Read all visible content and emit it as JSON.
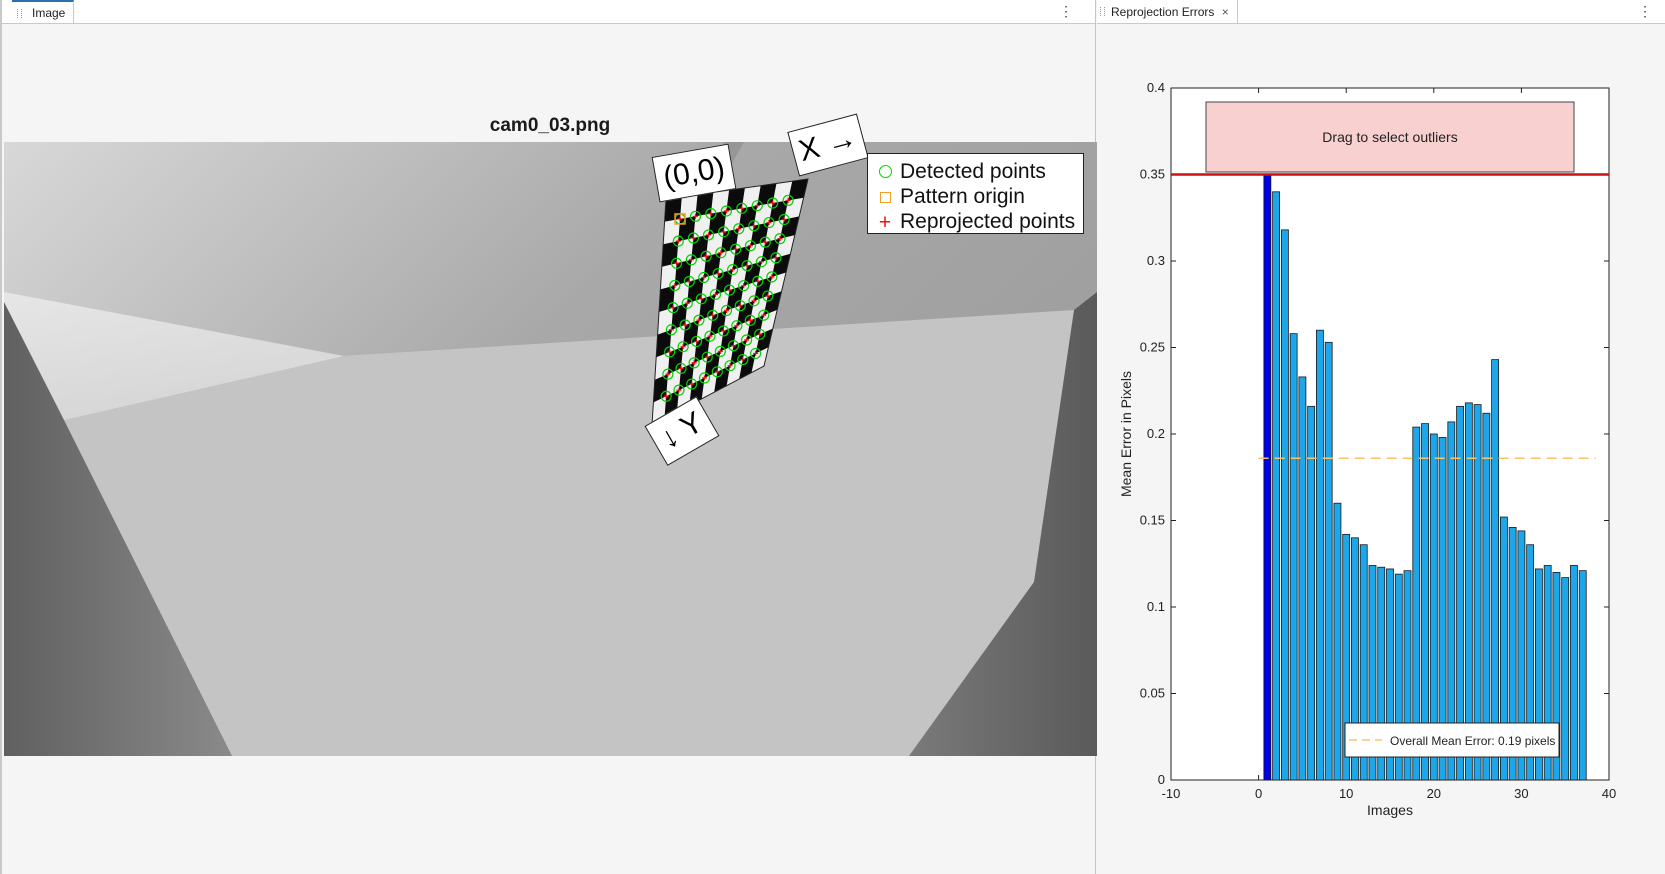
{
  "left_panel": {
    "tab_label": "Image",
    "image_title": "cam0_03.png",
    "origin_label": "(0,0)",
    "x_axis_label": "X →",
    "y_axis_label": "↓ Y",
    "legend": {
      "detected": "Detected points",
      "origin": "Pattern origin",
      "reprojected": "Reprojected points"
    }
  },
  "right_panel": {
    "tab_label": "Reprojection Errors",
    "close_icon": "×",
    "outlier_box_label": "Drag to select outliers"
  },
  "menu_icon": "⋮",
  "colors": {
    "bar": "#1da7ea",
    "bar_selected": "#0000e6",
    "threshold_line": "#cc1111",
    "mean_line": "#f6c46b",
    "outlier_box": "#f8d0d0",
    "detected_marker": "#00d400",
    "origin_marker": "#f0a020",
    "reprojected_marker": "#ee1111"
  },
  "chart_data": {
    "type": "bar",
    "xlabel": "Images",
    "ylabel": "Mean Error in Pixels",
    "xlim": [
      -10,
      40
    ],
    "ylim": [
      0,
      0.4
    ],
    "xticks": [
      "-10",
      "0",
      "10",
      "20",
      "30",
      "40"
    ],
    "yticks": [
      "0",
      "0.05",
      "0.1",
      "0.15",
      "0.2",
      "0.25",
      "0.3",
      "0.35",
      "0.4"
    ],
    "x": [
      1,
      2,
      3,
      4,
      5,
      6,
      7,
      8,
      9,
      10,
      11,
      12,
      13,
      14,
      15,
      16,
      17,
      18,
      19,
      20,
      21,
      22,
      23,
      24,
      25,
      26,
      27,
      28,
      29,
      30,
      31,
      32,
      33,
      34,
      35,
      36,
      37
    ],
    "values": [
      0.35,
      0.34,
      0.318,
      0.258,
      0.233,
      0.216,
      0.26,
      0.253,
      0.16,
      0.142,
      0.14,
      0.136,
      0.124,
      0.123,
      0.122,
      0.119,
      0.121,
      0.204,
      0.206,
      0.2,
      0.198,
      0.207,
      0.216,
      0.218,
      0.217,
      0.212,
      0.243,
      0.152,
      0.146,
      0.144,
      0.136,
      0.122,
      0.124,
      0.12,
      0.117,
      0.124,
      0.121
    ],
    "selected_index": 0,
    "threshold": 0.35,
    "overall_mean_error": 0.186,
    "mean_legend": "Overall Mean Error: 0.19 pixels",
    "grid": false
  }
}
